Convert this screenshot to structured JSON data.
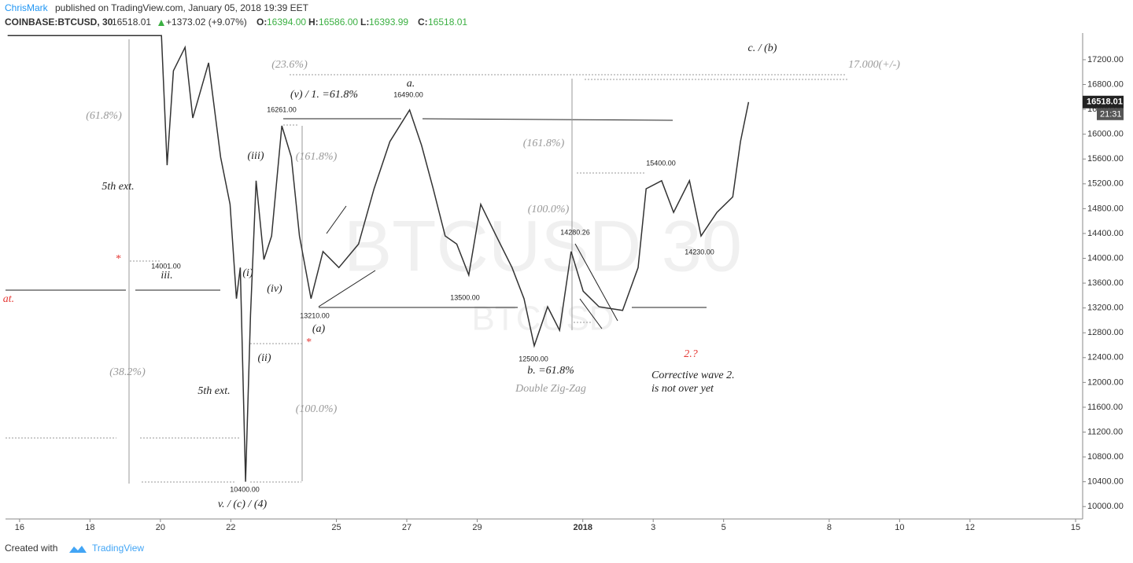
{
  "header": {
    "author": "ChrisMark",
    "published": "published on TradingView.com, January 05, 2018 19:39 EET",
    "symbol": "COINBASE:BTCUSD, 30",
    "last": "16518.01",
    "change": "+1373.02 (+9.07%)",
    "o_label": "O:",
    "open": "16394.00",
    "h_label": "H:",
    "high": "16586.00",
    "l_label": "L:",
    "low": "16393.99",
    "c_label": "C:",
    "close": "16518.01"
  },
  "price_tag": {
    "price": "16518.01",
    "countdown": "21:31"
  },
  "watermark": {
    "big": "BTCUSD 30",
    "small": "BTCUSD"
  },
  "footer": {
    "created": "Created with",
    "brand": "TradingView"
  },
  "annotations": [
    "(61.8%)",
    "5th  ext.",
    "iii.",
    "14001.00",
    "*",
    "at.",
    "(38.2%)",
    "5th ext.",
    "10400.00",
    "v. / (c) / (4)",
    "(i)",
    "(ii)",
    "(iii)",
    "(iv)",
    "16261.00",
    "(23.6%)",
    "(v) / 1. =61.8%",
    "(161.8%)",
    "13210.00",
    "(a)",
    "*",
    "(100.0%)",
    "a.",
    "16490.00",
    "13500.00",
    "12500.00",
    "b. =61.8%",
    "Double Zig-Zag",
    "(161.8%)",
    "(100.0%)",
    "14280.26",
    "15400.00",
    "14230.00",
    "2.?",
    "Corrective wave 2.",
    "is not over yet",
    "c. / (b)",
    "17.000(+/-)"
  ],
  "chart_data": {
    "type": "line",
    "color": "#333333",
    "x": [
      -0.34,
      4.03,
      4.19,
      4.37,
      4.7,
      4.92,
      5.37,
      5.71,
      5.98,
      6.16,
      6.27,
      6.42,
      6.56,
      6.72,
      6.94,
      7.16,
      7.45,
      7.72,
      7.95,
      8.28,
      8.62,
      9.07,
      9.63,
      10.07,
      10.52,
      11.08,
      11.42,
      11.75,
      12.09,
      12.42,
      12.76,
      13.1,
      13.54,
      13.99,
      14.33,
      14.62,
      15.0,
      15.34,
      15.67,
      16.01,
      16.46,
      17.13,
      17.57,
      17.8,
      18.24,
      18.58,
      19.03,
      19.36,
      19.81,
      20.26,
      20.48,
      20.71
    ],
    "values": [
      17590,
      17590,
      15500,
      17020,
      17400,
      16260,
      17150,
      15630,
      14870,
      13350,
      13850,
      10400,
      13090,
      15250,
      13980,
      14360,
      16135,
      15630,
      14360,
      13350,
      14110,
      13850,
      14230,
      15120,
      15880,
      16390,
      15820,
      15120,
      14360,
      14230,
      13730,
      14870,
      14360,
      13850,
      13350,
      12590,
      13220,
      12840,
      14110,
      13470,
      13220,
      13160,
      13850,
      15120,
      15250,
      14740,
      15250,
      14360,
      14740,
      14990,
      15880,
      16518.01
    ],
    "xlim": [
      -0.4,
      30.2
    ],
    "xticks": [
      {
        "value": 0,
        "label": "16"
      },
      {
        "value": 2,
        "label": "18"
      },
      {
        "value": 4,
        "label": "20"
      },
      {
        "value": 6,
        "label": "22"
      },
      {
        "value": 9,
        "label": "25"
      },
      {
        "value": 11,
        "label": "27"
      },
      {
        "value": 13,
        "label": "29"
      },
      {
        "value": 16,
        "label": "2018"
      },
      {
        "value": 18,
        "label": "3"
      },
      {
        "value": 20,
        "label": "5"
      },
      {
        "value": 23,
        "label": "8"
      },
      {
        "value": 25,
        "label": "10"
      },
      {
        "value": 27,
        "label": "12"
      },
      {
        "value": 30,
        "label": "15"
      }
    ],
    "ylim": [
      9800,
      17630
    ],
    "yticks": [
      {
        "value": 10000,
        "label": "10000.00"
      },
      {
        "value": 10400,
        "label": "10400.00"
      },
      {
        "value": 10800,
        "label": "10800.00"
      },
      {
        "value": 11200,
        "label": "11200.00"
      },
      {
        "value": 11600,
        "label": "11600.00"
      },
      {
        "value": 12000,
        "label": "12000.00"
      },
      {
        "value": 12400,
        "label": "12400.00"
      },
      {
        "value": 12800,
        "label": "12800.00"
      },
      {
        "value": 13200,
        "label": "13200.00"
      },
      {
        "value": 13600,
        "label": "13600.00"
      },
      {
        "value": 14000,
        "label": "14000.00"
      },
      {
        "value": 14400,
        "label": "14400.00"
      },
      {
        "value": 14800,
        "label": "14800.00"
      },
      {
        "value": 15200,
        "label": "15200.00"
      },
      {
        "value": 15600,
        "label": "15600.00"
      },
      {
        "value": 16000,
        "label": "16000.00"
      },
      {
        "value": 16400,
        "label": "16400.00"
      },
      {
        "value": 16800,
        "label": "16800.00"
      },
      {
        "value": 17200,
        "label": "17200.00"
      }
    ]
  }
}
